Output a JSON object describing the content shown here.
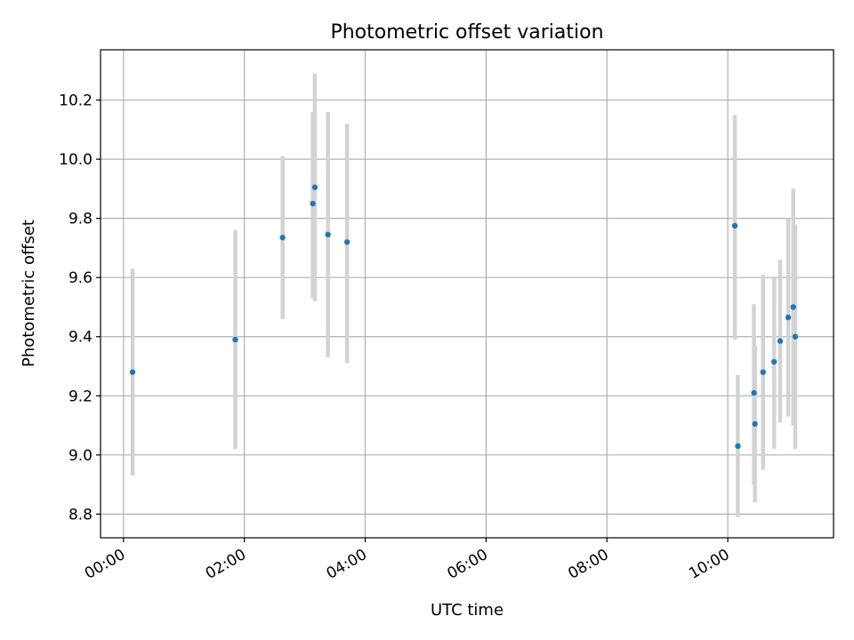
{
  "chart_data": {
    "type": "scatter",
    "title": "Photometric offset variation",
    "xlabel": "UTC time",
    "ylabel": "Photometric offset",
    "x_unit": "hours UTC",
    "xlim": [
      -0.38,
      11.75
    ],
    "ylim": [
      8.72,
      10.37
    ],
    "xticks": [
      "00:00",
      "02:00",
      "04:00",
      "06:00",
      "08:00",
      "10:00"
    ],
    "yticks": [
      "8.8",
      "9.0",
      "9.2",
      "9.4",
      "9.6",
      "9.8",
      "10.0",
      "10.2"
    ],
    "grid": true,
    "point_color": "#1f77b4",
    "errorbar_color": "#d3d3d3",
    "points": [
      {
        "time": "00:09",
        "y": 9.28,
        "lo": 8.93,
        "hi": 9.63
      },
      {
        "time": "01:51",
        "y": 9.39,
        "lo": 9.02,
        "hi": 9.76
      },
      {
        "time": "02:38",
        "y": 9.735,
        "lo": 9.46,
        "hi": 10.01
      },
      {
        "time": "03:08",
        "y": 9.85,
        "lo": 9.53,
        "hi": 10.16
      },
      {
        "time": "03:10",
        "y": 9.905,
        "lo": 9.52,
        "hi": 10.29
      },
      {
        "time": "03:23",
        "y": 9.745,
        "lo": 9.33,
        "hi": 10.16
      },
      {
        "time": "03:42",
        "y": 9.72,
        "lo": 9.31,
        "hi": 10.12
      },
      {
        "time": "10:07",
        "y": 9.775,
        "lo": 9.39,
        "hi": 10.15
      },
      {
        "time": "10:10",
        "y": 9.03,
        "lo": 8.79,
        "hi": 9.27
      },
      {
        "time": "10:26",
        "y": 9.21,
        "lo": 8.9,
        "hi": 9.51
      },
      {
        "time": "10:27",
        "y": 9.105,
        "lo": 8.84,
        "hi": 9.37
      },
      {
        "time": "10:35",
        "y": 9.28,
        "lo": 8.95,
        "hi": 9.61
      },
      {
        "time": "10:46",
        "y": 9.315,
        "lo": 9.02,
        "hi": 9.6
      },
      {
        "time": "10:52",
        "y": 9.385,
        "lo": 9.11,
        "hi": 9.66
      },
      {
        "time": "11:00",
        "y": 9.465,
        "lo": 9.13,
        "hi": 9.8
      },
      {
        "time": "11:05",
        "y": 9.5,
        "lo": 9.1,
        "hi": 9.9
      },
      {
        "time": "11:07",
        "y": 9.4,
        "lo": 9.02,
        "hi": 9.78
      }
    ]
  }
}
